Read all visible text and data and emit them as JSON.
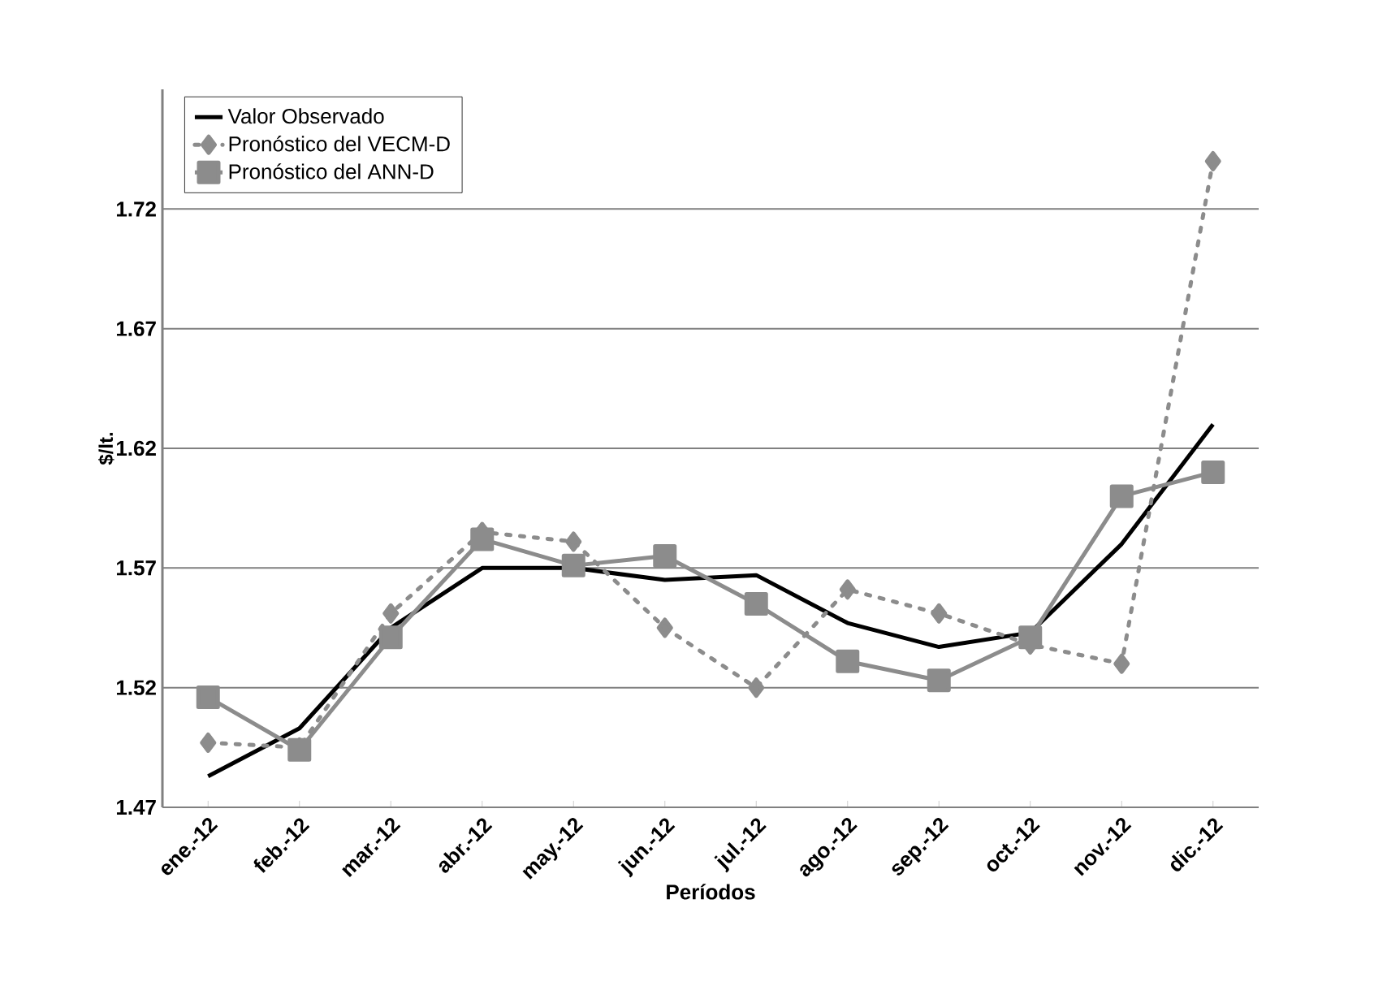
{
  "chart_data": {
    "type": "line",
    "xlabel": "Períodos",
    "ylabel": "$/lt.",
    "categories": [
      "ene.-12",
      "feb.-12",
      "mar.-12",
      "abr.-12",
      "may.-12",
      "jun.-12",
      "jul.-12",
      "ago.-12",
      "sep.-12",
      "oct.-12",
      "nov.-12",
      "dic.-12"
    ],
    "series": [
      {
        "name": "Valor Observado",
        "color": "#000000",
        "marker": "none",
        "line_style": "solid",
        "values": [
          1.483,
          1.503,
          1.545,
          1.57,
          1.57,
          1.565,
          1.567,
          1.547,
          1.537,
          1.543,
          1.58,
          1.63
        ]
      },
      {
        "name": "Pronóstico del VECM-D",
        "color": "#8c8c8c",
        "marker": "diamond",
        "line_style": "dotted",
        "values": [
          1.497,
          1.495,
          1.551,
          1.585,
          1.581,
          1.545,
          1.52,
          1.561,
          1.551,
          1.538,
          1.53,
          1.74
        ]
      },
      {
        "name": "Pronóstico del ANN-D",
        "color": "#8c8c8c",
        "marker": "square",
        "line_style": "solid",
        "values": [
          1.516,
          1.494,
          1.541,
          1.582,
          1.571,
          1.575,
          1.555,
          1.531,
          1.523,
          1.541,
          1.6,
          1.61
        ]
      }
    ],
    "ylim": [
      1.47,
      1.77
    ],
    "yticks": [
      1.47,
      1.52,
      1.57,
      1.62,
      1.67,
      1.72
    ],
    "grid": "y",
    "legend": "top left"
  }
}
